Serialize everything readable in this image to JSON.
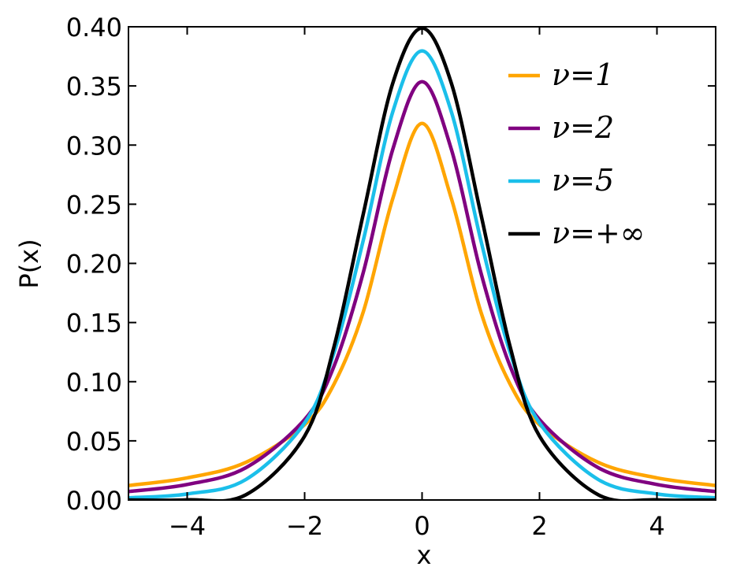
{
  "chart_data": {
    "type": "line",
    "title": "",
    "xlabel": "x",
    "ylabel": "P(x)",
    "xlim": [
      -5,
      5
    ],
    "ylim": [
      0,
      0.4
    ],
    "xticks": [
      {
        "value": -4,
        "label": "−4"
      },
      {
        "value": -2,
        "label": "−2"
      },
      {
        "value": 0,
        "label": "0"
      },
      {
        "value": 2,
        "label": "2"
      },
      {
        "value": 4,
        "label": "4"
      }
    ],
    "yticks": [
      {
        "value": 0.0,
        "label": "0.00"
      },
      {
        "value": 0.05,
        "label": "0.05"
      },
      {
        "value": 0.1,
        "label": "0.10"
      },
      {
        "value": 0.15,
        "label": "0.15"
      },
      {
        "value": 0.2,
        "label": "0.20"
      },
      {
        "value": 0.25,
        "label": "0.25"
      },
      {
        "value": 0.3,
        "label": "0.30"
      },
      {
        "value": 0.35,
        "label": "0.35"
      },
      {
        "value": 0.4,
        "label": "0.40"
      }
    ],
    "grid": false,
    "legend_position": "top-right",
    "x": [
      -5,
      -4,
      -3,
      -2,
      -1.5,
      -1,
      -0.5,
      0,
      0.5,
      1,
      1.5,
      2,
      3,
      4,
      5
    ],
    "series": [
      {
        "name": "ν=1",
        "color": "#FFA500",
        "values": [
          0.0122,
          0.0187,
          0.0318,
          0.0637,
          0.0979,
          0.1592,
          0.2546,
          0.3183,
          0.2546,
          0.1592,
          0.0979,
          0.0637,
          0.0318,
          0.0187,
          0.0122
        ]
      },
      {
        "name": "ν=2",
        "color": "#800080",
        "values": [
          0.0071,
          0.0131,
          0.0273,
          0.068,
          0.113,
          0.1925,
          0.2962,
          0.3536,
          0.2962,
          0.1925,
          0.113,
          0.068,
          0.0273,
          0.0131,
          0.0071
        ]
      },
      {
        "name": "ν=5",
        "color": "#1BBFEA",
        "values": [
          0.0018,
          0.0051,
          0.0173,
          0.0651,
          0.1245,
          0.2197,
          0.3279,
          0.3796,
          0.3279,
          0.2197,
          0.1245,
          0.0651,
          0.0173,
          0.0051,
          0.0018
        ]
      },
      {
        "name": "ν=+∞",
        "color": "#000000",
        "values": [
          1.5e-06,
          0.0001,
          0.0044,
          0.054,
          0.1295,
          0.242,
          0.3521,
          0.3989,
          0.3521,
          0.242,
          0.1295,
          0.054,
          0.0044,
          0.0001,
          1.5e-06
        ]
      }
    ]
  }
}
